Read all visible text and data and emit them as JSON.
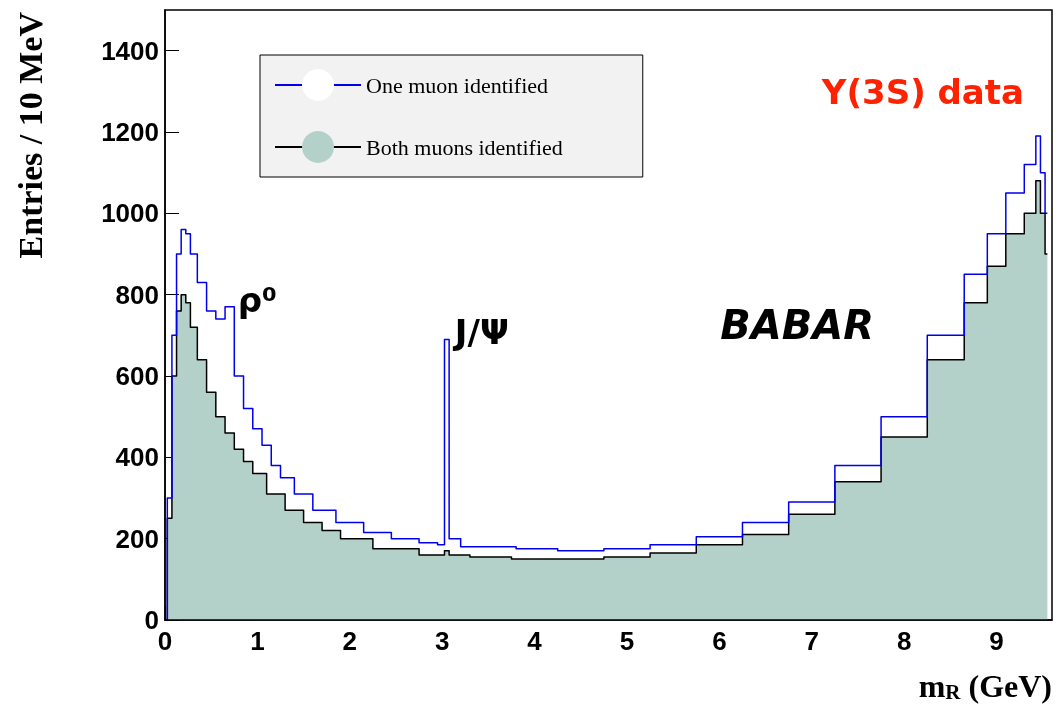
{
  "chart_data": {
    "type": "step",
    "xlabel": "m$_{R}$ (GeV)",
    "ylabel": "Entries / 10 MeV",
    "xlim": [
      0,
      9.6
    ],
    "xticks": [
      0,
      1,
      2,
      3,
      4,
      5,
      6,
      7,
      8,
      9
    ],
    "ylim": [
      0,
      1500
    ],
    "yticks": [
      0,
      200,
      400,
      600,
      800,
      1000,
      1200,
      1400
    ],
    "grid": false,
    "legend": "top left",
    "marker": "none",
    "line_style": "solid",
    "series": [
      {
        "name": "One muon identified",
        "color": "#0000ee",
        "x": [
          0,
          0.05,
          0.1,
          0.15,
          0.2,
          0.25,
          0.3,
          0.4,
          0.5,
          0.6,
          0.7,
          0.8,
          0.9,
          1.0,
          1.1,
          1.2,
          1.3,
          1.5,
          1.7,
          2.0,
          2.3,
          2.6,
          2.9,
          3.0,
          3.05,
          3.1,
          3.3,
          3.6,
          4.0,
          4.5,
          5.0,
          5.5,
          6.0,
          6.5,
          7.0,
          7.5,
          8.0,
          8.5,
          8.8,
          9.0,
          9.2,
          9.4,
          9.45,
          9.5,
          9.55
        ],
        "values": [
          0,
          300,
          700,
          900,
          960,
          950,
          900,
          830,
          760,
          740,
          770,
          600,
          520,
          470,
          430,
          380,
          350,
          310,
          270,
          240,
          215,
          200,
          190,
          185,
          690,
          200,
          180,
          180,
          175,
          170,
          175,
          185,
          205,
          240,
          290,
          380,
          500,
          700,
          850,
          950,
          1050,
          1120,
          1190,
          1100,
          1000
        ]
      },
      {
        "name": "Both muons identified",
        "type": "area",
        "color": "#b3d1c8",
        "x": [
          0,
          0.05,
          0.1,
          0.15,
          0.2,
          0.25,
          0.3,
          0.4,
          0.5,
          0.6,
          0.7,
          0.8,
          0.9,
          1.0,
          1.2,
          1.4,
          1.6,
          1.8,
          2.0,
          2.5,
          3.0,
          3.05,
          3.1,
          3.5,
          4.0,
          4.5,
          5.0,
          5.5,
          6.0,
          6.5,
          7.0,
          7.5,
          8.0,
          8.5,
          8.8,
          9.0,
          9.2,
          9.4,
          9.45,
          9.5,
          9.55
        ],
        "values": [
          0,
          250,
          600,
          760,
          800,
          780,
          720,
          640,
          560,
          500,
          460,
          420,
          390,
          360,
          310,
          270,
          240,
          220,
          200,
          175,
          160,
          170,
          160,
          155,
          150,
          150,
          155,
          165,
          185,
          210,
          260,
          340,
          450,
          640,
          780,
          870,
          950,
          1000,
          1080,
          1000,
          900
        ]
      }
    ],
    "annotations": [
      {
        "text": "ρ⁰",
        "x": 0.7,
        "y": 770
      },
      {
        "text": "J/Ψ",
        "x": 3.05,
        "y": 690
      },
      "Υ(3S) data",
      "BABAR"
    ]
  }
}
